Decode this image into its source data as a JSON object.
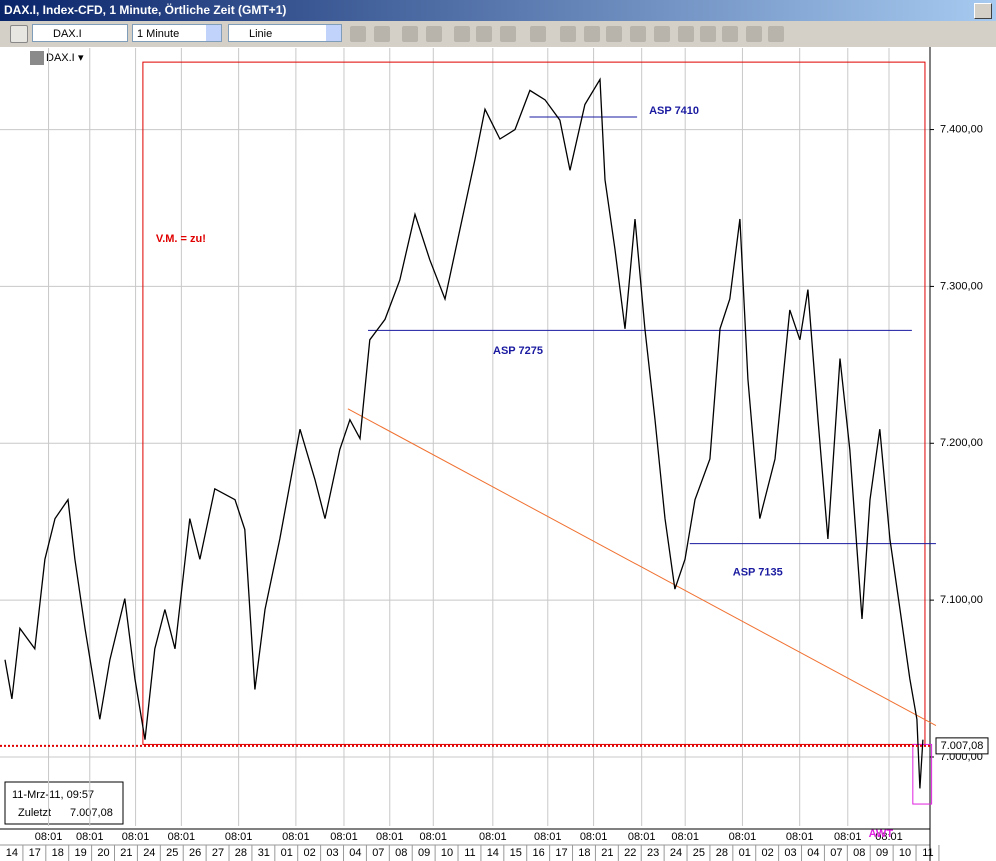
{
  "window": {
    "title": "DAX.I, Index-CFD, 1 Minute, Örtliche Zeit (GMT+1)"
  },
  "toolbar": {
    "symbol": "DAX.I",
    "interval": "1 Minute",
    "style": "Linie"
  },
  "chart_header": {
    "symbol": "DAX.I"
  },
  "info": {
    "datetime": "11-Mrz-11, 09:57",
    "label": "Zuletzt",
    "value": "7.007,08"
  },
  "chart_data": {
    "type": "line",
    "series": [
      {
        "name": "DAX.I",
        "color": "#000000",
        "x": [
          -0.3,
          0,
          0.35,
          1.0,
          1.44,
          1.88,
          2.45,
          2.75,
          3.19,
          3.84,
          4.28,
          4.93,
          5.37,
          5.81,
          6.24,
          6.68,
          7.12,
          7.77,
          8.21,
          8.86,
          9.74,
          10.17,
          10.61,
          11.05,
          11.7,
          12.58,
          13.23,
          13.67,
          14.32,
          14.76,
          15.2,
          15.63,
          16.29,
          16.94,
          17.6,
          18.25,
          18.91,
          19.56,
          20.22,
          20.66,
          21.31,
          21.97,
          22.62,
          23.28,
          23.93,
          24.37,
          25.02,
          25.68,
          25.9,
          26.33,
          26.77,
          27.21,
          27.64,
          28.08,
          28.52,
          28.95,
          29.39,
          29.83,
          30.48,
          30.92,
          31.35,
          31.79,
          32.14,
          32.66,
          33.32,
          33.97,
          34.41,
          34.76,
          35.2,
          35.63,
          36.16,
          36.59,
          37.12,
          37.47,
          37.9,
          38.34,
          38.78,
          39.21,
          39.52,
          39.65,
          39.78
        ],
        "values": [
          7062,
          7037,
          7082,
          7069,
          7126,
          7152,
          7164,
          7126,
          7082,
          7024,
          7062,
          7101,
          7050,
          7011,
          7069,
          7094,
          7069,
          7152,
          7126,
          7171,
          7164,
          7145,
          7043,
          7094,
          7139,
          7209,
          7177,
          7152,
          7196,
          7215,
          7203,
          7266,
          7279,
          7304,
          7346,
          7317,
          7292,
          7336,
          7381,
          7413,
          7394,
          7400,
          7425,
          7419,
          7406,
          7374,
          7416,
          7432,
          7368,
          7324,
          7273,
          7343,
          7273,
          7215,
          7152,
          7107,
          7126,
          7164,
          7190,
          7273,
          7292,
          7343,
          7241,
          7152,
          7190,
          7285,
          7266,
          7298,
          7215,
          7139,
          7254,
          7196,
          7088,
          7164,
          7209,
          7139,
          7094,
          7050,
          7024,
          6980,
          7011
        ]
      }
    ],
    "categories": [
      "14",
      "17",
      "18",
      "19",
      "20",
      "21",
      "24",
      "25",
      "26",
      "27",
      "28",
      "31",
      "01",
      "02",
      "03",
      "04",
      "07",
      "08",
      "09",
      "10",
      "11",
      "14",
      "15",
      "16",
      "17",
      "18",
      "21",
      "22",
      "23",
      "24",
      "25",
      "28",
      "01",
      "02",
      "03",
      "04",
      "07",
      "08",
      "09",
      "10",
      "11"
    ],
    "xlim": [
      -0.52,
      40.09
    ],
    "xticks": [
      {
        "value": 1.6,
        "label": "08:01"
      },
      {
        "value": 3.4,
        "label": "08:01"
      },
      {
        "value": 5.4,
        "label": "08:01"
      },
      {
        "value": 7.4,
        "label": "08:01"
      },
      {
        "value": 9.9,
        "label": "08:01"
      },
      {
        "value": 12.4,
        "label": "08:01"
      },
      {
        "value": 14.5,
        "label": "08:01"
      },
      {
        "value": 16.5,
        "label": "08:01"
      },
      {
        "value": 18.4,
        "label": "08:01"
      },
      {
        "value": 21.0,
        "label": "08:01"
      },
      {
        "value": 23.4,
        "label": "08:01"
      },
      {
        "value": 25.4,
        "label": "08:01"
      },
      {
        "value": 27.5,
        "label": "08:01"
      },
      {
        "value": 29.4,
        "label": "08:01"
      },
      {
        "value": 31.9,
        "label": "08:01"
      },
      {
        "value": 34.4,
        "label": "08:01"
      },
      {
        "value": 36.5,
        "label": "08:01"
      },
      {
        "value": 38.3,
        "label": "08:01"
      }
    ],
    "ylim": [
      6956,
      7452
    ],
    "yticks": [
      {
        "value": 7000,
        "label": "7.000,00"
      },
      {
        "value": 7100,
        "label": "7.100,00"
      },
      {
        "value": 7200,
        "label": "7.200,00"
      },
      {
        "value": 7300,
        "label": "7.300,00"
      },
      {
        "value": 7400,
        "label": "7.400,00"
      }
    ],
    "grid": true,
    "last_price": {
      "value": 7007.08,
      "label": "7.007,08",
      "color": "#e00000"
    },
    "hlines": [
      {
        "label": "ASP 7410",
        "value": 7408,
        "x": [
          22.6,
          27.3
        ],
        "color": "#1a1aa0"
      },
      {
        "label": "ASP 7275",
        "value": 7272,
        "x": [
          15.55,
          39.3
        ],
        "color": "#1a1aa0"
      },
      {
        "label": "ASP 7135",
        "value": 7136,
        "x": [
          29.6,
          40.35
        ],
        "color": "#1a1aa0"
      }
    ],
    "trendline": {
      "x": [
        14.67,
        40.35
      ],
      "y": [
        7222,
        7020
      ],
      "color": "#f07030"
    },
    "boxes": [
      {
        "label": "V.M. = zu!",
        "x": [
          5.72,
          39.87
        ],
        "y": [
          7008,
          7443
        ],
        "color": "#e00000"
      },
      {
        "label": "AWT",
        "x": [
          39.34,
          40.16
        ],
        "y": [
          6970,
          7008
        ],
        "color": "#e020e0"
      }
    ]
  }
}
